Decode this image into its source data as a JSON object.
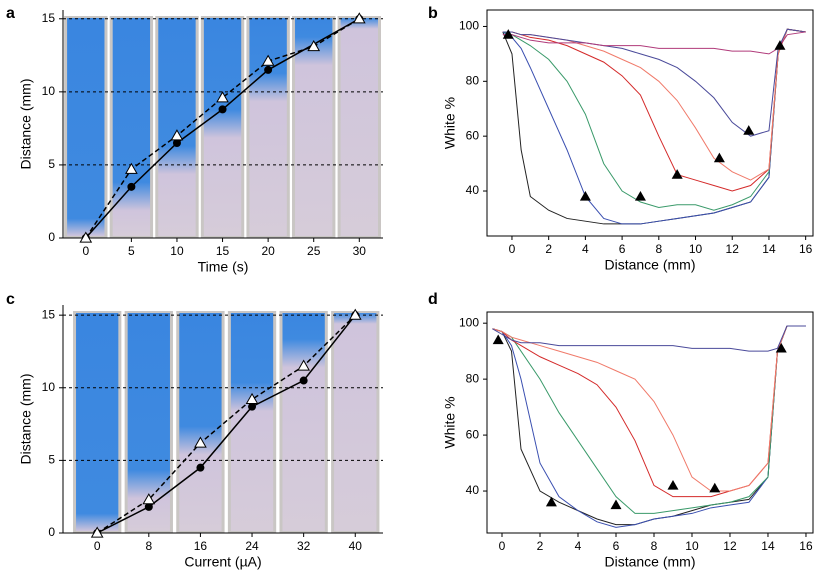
{
  "chart_data": [
    {
      "type": "line",
      "panel": "a",
      "xlabel": "Time (s)",
      "ylabel": "Distance (mm)",
      "xlim": [
        -2.5,
        32.6
      ],
      "ylim": [
        0,
        15.6
      ],
      "xticks": [
        0,
        5,
        10,
        15,
        20,
        25,
        30
      ],
      "yticks": [
        0,
        5,
        10,
        15
      ],
      "grid": "dashed",
      "photos": true,
      "box": false,
      "series": [
        {
          "x": [
            0,
            5,
            10,
            15,
            20,
            30
          ],
          "values": [
            0,
            3.5,
            6.5,
            8.8,
            11.5,
            15
          ],
          "color": "#000000",
          "marker": "circle",
          "dash": false
        },
        {
          "x": [
            0,
            5,
            10,
            15,
            20,
            25,
            30
          ],
          "values": [
            0,
            4.7,
            7,
            9.6,
            12.1,
            13.1,
            15
          ],
          "color": "#000000",
          "marker": "triangle",
          "dash": true
        }
      ]
    },
    {
      "type": "line",
      "panel": "b",
      "xlabel": "Distance (mm)",
      "ylabel": "White %",
      "xlim": [
        -1.36,
        16.4
      ],
      "ylim": [
        23.6,
        106
      ],
      "xticks": [
        0,
        2,
        4,
        6,
        8,
        10,
        12,
        14,
        16
      ],
      "yticks": [
        40,
        60,
        80,
        100
      ],
      "box": true,
      "x": [
        -0.5,
        0,
        0.5,
        1,
        2,
        3,
        4,
        5,
        6,
        7,
        8,
        9,
        10,
        11,
        12,
        13,
        14,
        14.5,
        15,
        16
      ],
      "series": [
        {
          "color": "#222222",
          "values": [
            98,
            90,
            55,
            38,
            33,
            30,
            29,
            28,
            28,
            28,
            29,
            30,
            31,
            32,
            34,
            36,
            45,
            90,
            99,
            98
          ]
        },
        {
          "color": "#3a4fb0",
          "values": [
            98,
            96,
            92,
            85,
            70,
            55,
            38,
            30,
            28,
            28,
            29,
            30,
            31,
            32,
            34,
            36,
            45,
            90,
            99,
            98
          ]
        },
        {
          "color": "#3a9a6a",
          "values": [
            98,
            97,
            95,
            93,
            88,
            80,
            68,
            50,
            40,
            36,
            34,
            35,
            35,
            33,
            35,
            38,
            47,
            90,
            99,
            98
          ]
        },
        {
          "color": "#d42a2a",
          "values": [
            98,
            98,
            97,
            96,
            95,
            93,
            90,
            87,
            82,
            75,
            60,
            46,
            44,
            42,
            40,
            42,
            48,
            90,
            99,
            98
          ]
        },
        {
          "color": "#f07a6a",
          "values": [
            98,
            98,
            97,
            97,
            96,
            95,
            93,
            91,
            88,
            85,
            80,
            73,
            63,
            52,
            47,
            44,
            48,
            90,
            99,
            98
          ]
        },
        {
          "color": "#4a4a9a",
          "values": [
            98,
            98,
            97,
            97,
            96,
            95,
            94,
            93,
            92,
            90,
            88,
            85,
            80,
            74,
            65,
            60,
            62,
            92,
            99,
            98
          ]
        },
        {
          "color": "#b03a7a",
          "values": [
            97,
            97,
            96,
            95,
            94,
            94,
            94,
            93,
            93,
            93,
            92,
            92,
            92,
            92,
            91,
            91,
            90,
            92,
            97,
            98
          ]
        }
      ],
      "markers": {
        "x": [
          -0.2,
          4,
          7,
          9,
          11.3,
          12.9,
          14.6
        ],
        "values": [
          97,
          38,
          38,
          46,
          52,
          62,
          93
        ]
      }
    },
    {
      "type": "line",
      "panel": "c",
      "xlabel": "Current (µA)",
      "ylabel": "Distance (mm)",
      "xlim": [
        -5.3,
        44.3
      ],
      "ylim": [
        0,
        15.7
      ],
      "xticks": [
        0,
        8,
        16,
        24,
        32,
        40
      ],
      "yticks": [
        0,
        5,
        10,
        15
      ],
      "grid": "dashed",
      "photos": true,
      "box": false,
      "series": [
        {
          "x": [
            0,
            8,
            16,
            24,
            32,
            40
          ],
          "values": [
            0,
            1.8,
            4.5,
            8.7,
            10.5,
            15
          ],
          "color": "#000000",
          "marker": "circle",
          "dash": false
        },
        {
          "x": [
            0,
            8,
            16,
            24,
            32,
            40
          ],
          "values": [
            0,
            2.3,
            6.2,
            9.2,
            11.5,
            15
          ],
          "color": "#000000",
          "marker": "triangle",
          "dash": true
        }
      ]
    },
    {
      "type": "line",
      "panel": "d",
      "xlabel": "Distance (mm)",
      "ylabel": "White %",
      "xlim": [
        -0.79,
        16.37
      ],
      "ylim": [
        25,
        104
      ],
      "xticks": [
        0,
        2,
        4,
        6,
        8,
        10,
        12,
        14,
        16
      ],
      "yticks": [
        40,
        60,
        80,
        100
      ],
      "box": true,
      "x": [
        -0.5,
        0,
        0.5,
        1,
        2,
        3,
        4,
        5,
        6,
        7,
        8,
        9,
        10,
        11,
        12,
        13,
        14,
        14.5,
        15,
        16
      ],
      "series": [
        {
          "color": "#222222",
          "values": [
            98,
            97,
            90,
            55,
            40,
            36,
            33,
            30,
            28,
            28,
            30,
            31,
            33,
            35,
            36,
            37,
            45,
            90,
            99,
            99
          ]
        },
        {
          "color": "#3a4fb0",
          "values": [
            98,
            97,
            92,
            80,
            50,
            38,
            33,
            29,
            27,
            28,
            30,
            31,
            32,
            34,
            35,
            36,
            45,
            90,
            99,
            99
          ]
        },
        {
          "color": "#3a9a6a",
          "values": [
            98,
            97,
            95,
            90,
            80,
            68,
            58,
            48,
            38,
            32,
            32,
            33,
            34,
            35,
            36,
            38,
            45,
            90,
            99,
            99
          ]
        },
        {
          "color": "#d42a2a",
          "values": [
            98,
            97,
            94,
            92,
            88,
            85,
            82,
            78,
            70,
            58,
            42,
            38,
            38,
            38,
            40,
            42,
            50,
            90,
            99,
            99
          ]
        },
        {
          "color": "#f07a6a",
          "values": [
            98,
            97,
            95,
            94,
            92,
            90,
            88,
            86,
            83,
            80,
            72,
            60,
            45,
            40,
            40,
            42,
            50,
            90,
            99,
            99
          ]
        },
        {
          "color": "#4a4a9a",
          "values": [
            98,
            96,
            94,
            93,
            93,
            92,
            92,
            92,
            92,
            92,
            92,
            92,
            91,
            91,
            91,
            90,
            90,
            91,
            99,
            99
          ]
        }
      ],
      "markers": {
        "x": [
          -0.2,
          2.6,
          6,
          9,
          11.2,
          14.7
        ],
        "values": [
          94,
          36,
          35,
          42,
          41,
          91
        ]
      }
    }
  ]
}
